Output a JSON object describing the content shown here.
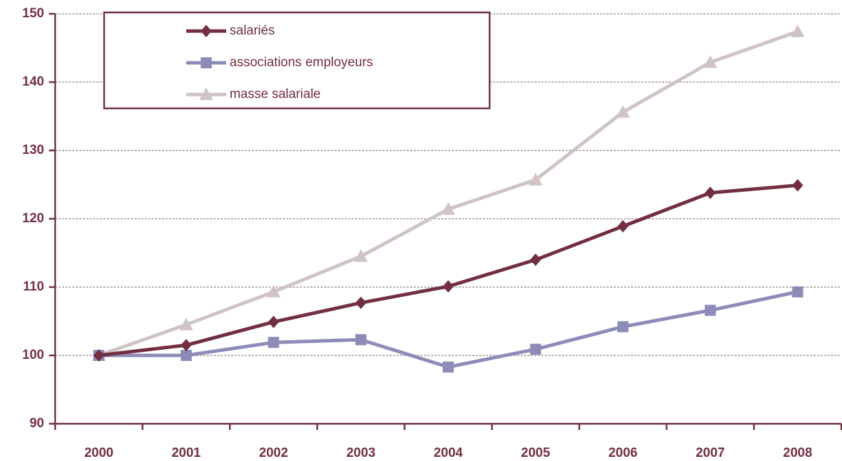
{
  "chart_data": {
    "type": "line",
    "categories": [
      "2000",
      "2001",
      "2002",
      "2003",
      "2004",
      "2005",
      "2006",
      "2007",
      "2008"
    ],
    "series": [
      {
        "name": "salariés",
        "color": "#722f3f",
        "marker": "diamond",
        "values": [
          100,
          101.5,
          104.9,
          107.7,
          110.1,
          114,
          118.9,
          123.8,
          124.9
        ]
      },
      {
        "name": "associations employeurs",
        "color": "#8c8cb8",
        "marker": "square",
        "values": [
          100,
          100,
          101.9,
          102.3,
          98.3,
          100.9,
          104.2,
          106.6,
          109.3
        ]
      },
      {
        "name": "masse salariale",
        "color": "#cfc3c3",
        "marker": "triangle",
        "values": [
          100,
          104.5,
          109.3,
          114.5,
          121.4,
          125.7,
          135.6,
          142.9,
          147.4
        ]
      }
    ],
    "ylim": [
      90,
      150
    ],
    "yticks": [
      90,
      100,
      110,
      120,
      130,
      140,
      150
    ],
    "grid": true,
    "legend": "upper left"
  }
}
